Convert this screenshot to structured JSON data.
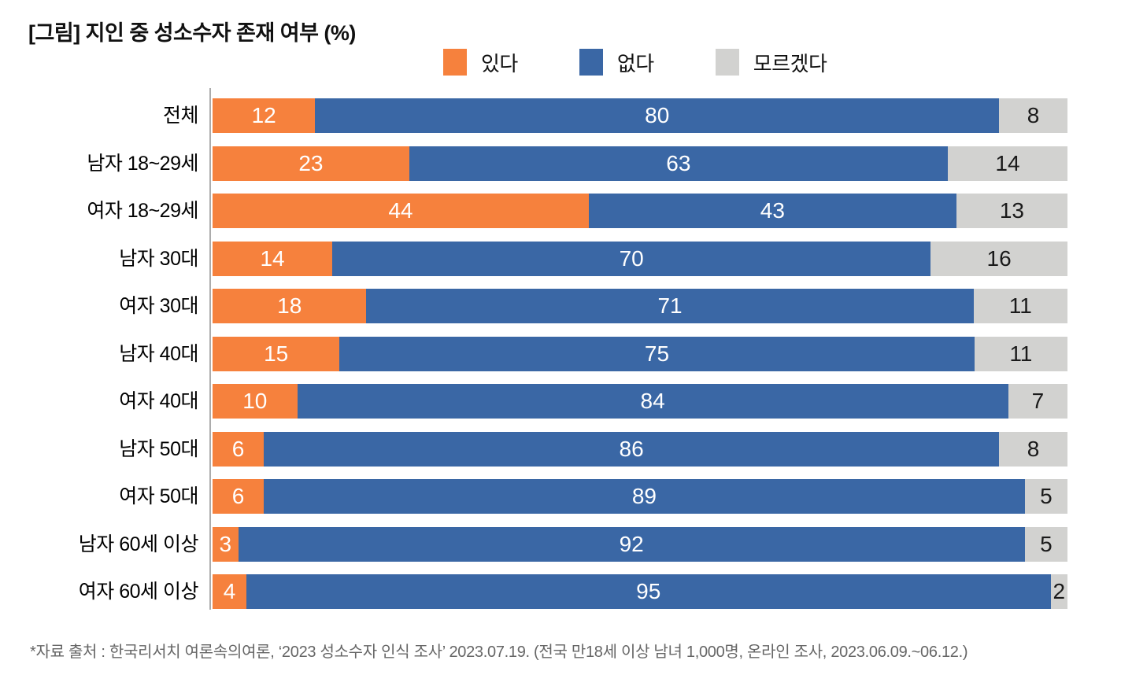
{
  "title": "[그림] 지인 중 성소수자 존재 여부 (%)",
  "footnote": "*자료 출처 : 한국리서치 여론속의여론, ‘2023 성소수자 인식 조사’ 2023.07.19. (전국 만18세 이상 남녀 1,000명, 온라인 조사, 2023.06.09.~06.12.)",
  "colors": {
    "yes_orange": "#F6813D",
    "no_blue": "#3A67A5",
    "dontknow_gray": "#D2D2D0",
    "axis_line": "#ACACAC",
    "title_text": "#111111",
    "footnote_text": "#666666"
  },
  "chart_data": {
    "type": "bar",
    "stacked": true,
    "orientation": "horizontal",
    "title": "[그림] 지인 중 성소수자 존재 여부 (%)",
    "xlabel": "",
    "ylabel": "",
    "xlim": [
      0,
      100
    ],
    "grid": false,
    "legend_position": "top",
    "categories": [
      "전체",
      "남자 18~29세",
      "여자 18~29세",
      "남자 30대",
      "여자 30대",
      "남자 40대",
      "여자 40대",
      "남자 50대",
      "여자 50대",
      "남자 60세 이상",
      "여자 60세 이상"
    ],
    "series": [
      {
        "key": "yes",
        "name": "있다",
        "color": "#F6813D",
        "label_color": "#FFFFFF",
        "values": [
          12,
          23,
          44,
          14,
          18,
          15,
          10,
          6,
          6,
          3,
          4
        ]
      },
      {
        "key": "no",
        "name": "없다",
        "color": "#3A67A5",
        "label_color": "#FFFFFF",
        "values": [
          80,
          63,
          43,
          70,
          71,
          75,
          84,
          86,
          89,
          92,
          95
        ]
      },
      {
        "key": "dontknow",
        "name": "모르겠다",
        "color": "#D2D2D0",
        "label_color": "#1A1A1A",
        "values": [
          8,
          14,
          13,
          16,
          11,
          11,
          7,
          8,
          5,
          5,
          2
        ]
      }
    ]
  }
}
